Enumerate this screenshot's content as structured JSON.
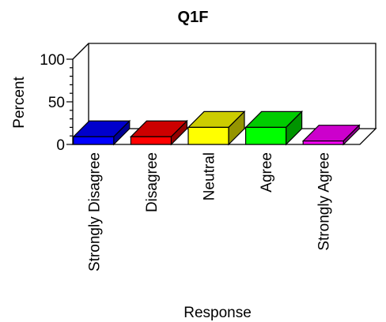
{
  "chart_data": {
    "type": "bar",
    "title": "Q1F",
    "xlabel": "Response",
    "ylabel": "Percent",
    "ylim": [
      0,
      100
    ],
    "yticks": [
      0,
      50,
      100
    ],
    "grid": false,
    "legend": "none",
    "categories": [
      "Strongly Disagree",
      "Disagree",
      "Neutral",
      "Agree",
      "Strongly Agree"
    ],
    "values": [
      9,
      9,
      20,
      20,
      4
    ],
    "colors": [
      "#0000ff",
      "#ff0000",
      "#ffff00",
      "#00ff00",
      "#ff00ff"
    ]
  }
}
